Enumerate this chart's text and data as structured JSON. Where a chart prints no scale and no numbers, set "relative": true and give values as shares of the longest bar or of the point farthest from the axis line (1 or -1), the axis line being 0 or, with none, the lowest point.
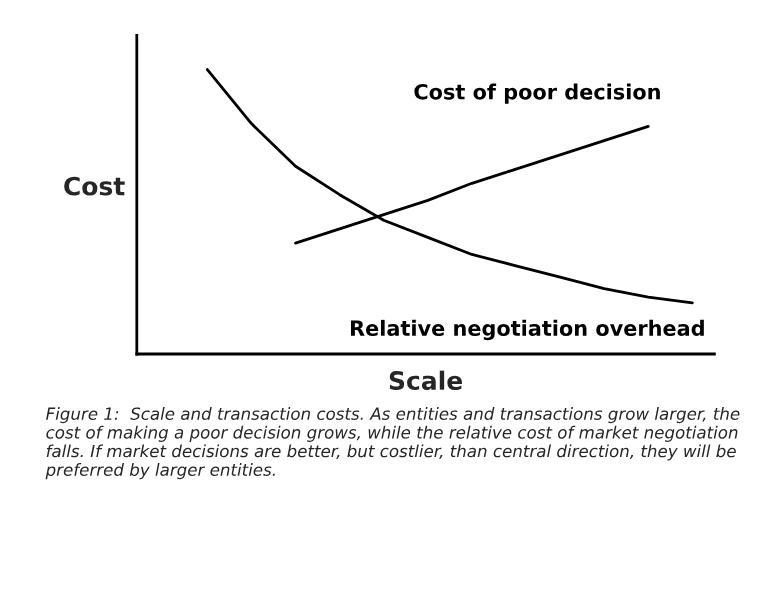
{
  "chart_data": {
    "type": "line",
    "relative": true,
    "xlabel": "Scale",
    "ylabel": "Cost",
    "categories": [
      null,
      null,
      null,
      null,
      null,
      null,
      null,
      null,
      null,
      null,
      null,
      null
    ],
    "series": [
      {
        "name": "Cost of poor decision",
        "color": "#000000",
        "values": [
          null,
          null,
          0.39,
          0.44,
          0.49,
          0.54,
          0.6,
          0.65,
          0.7,
          0.75,
          0.8,
          null
        ]
      },
      {
        "name": "Relative negotiation overhead",
        "color": "#000000",
        "values": [
          1.0,
          0.81,
          0.66,
          0.56,
          0.47,
          0.41,
          0.35,
          0.31,
          0.27,
          0.23,
          0.2,
          0.18
        ]
      }
    ],
    "annotations": [
      "Figure 1:  Scale and transaction costs. As entities and transactions grow larger, the cost of making a poor decision grows, while the relative cost of market negotiation falls. If market decisions are better, but costlier, than central direction, they will be preferred by larger entities."
    ],
    "marker": "none",
    "line_style": "solid"
  }
}
